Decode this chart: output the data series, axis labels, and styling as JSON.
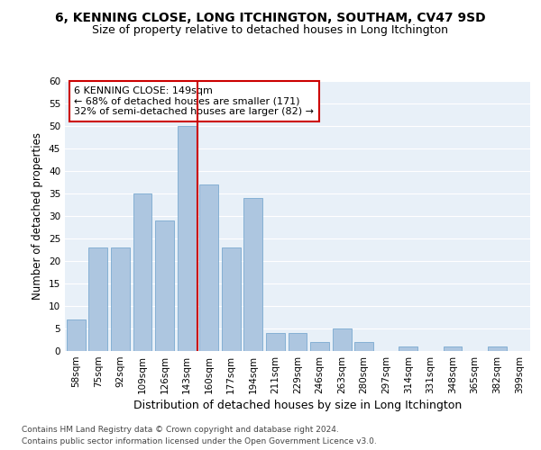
{
  "title": "6, KENNING CLOSE, LONG ITCHINGTON, SOUTHAM, CV47 9SD",
  "subtitle": "Size of property relative to detached houses in Long Itchington",
  "xlabel": "Distribution of detached houses by size in Long Itchington",
  "ylabel": "Number of detached properties",
  "bar_color": "#adc6e0",
  "bar_edge_color": "#7aaad0",
  "background_color": "#e8f0f8",
  "categories": [
    "58sqm",
    "75sqm",
    "92sqm",
    "109sqm",
    "126sqm",
    "143sqm",
    "160sqm",
    "177sqm",
    "194sqm",
    "211sqm",
    "229sqm",
    "246sqm",
    "263sqm",
    "280sqm",
    "297sqm",
    "314sqm",
    "331sqm",
    "348sqm",
    "365sqm",
    "382sqm",
    "399sqm"
  ],
  "values": [
    7,
    23,
    23,
    35,
    29,
    50,
    37,
    23,
    34,
    4,
    4,
    2,
    5,
    2,
    0,
    1,
    0,
    1,
    0,
    1,
    0
  ],
  "ylim": [
    0,
    60
  ],
  "yticks": [
    0,
    5,
    10,
    15,
    20,
    25,
    30,
    35,
    40,
    45,
    50,
    55,
    60
  ],
  "vline_x_idx": 5.5,
  "vline_color": "#cc0000",
  "annotation_line1": "6 KENNING CLOSE: 149sqm",
  "annotation_line2": "← 68% of detached houses are smaller (171)",
  "annotation_line3": "32% of semi-detached houses are larger (82) →",
  "footer_line1": "Contains HM Land Registry data © Crown copyright and database right 2024.",
  "footer_line2": "Contains public sector information licensed under the Open Government Licence v3.0.",
  "grid_color": "#ffffff",
  "title_fontsize": 10,
  "subtitle_fontsize": 9,
  "xlabel_fontsize": 9,
  "ylabel_fontsize": 8.5,
  "tick_fontsize": 7.5,
  "annotation_fontsize": 8,
  "footer_fontsize": 6.5
}
